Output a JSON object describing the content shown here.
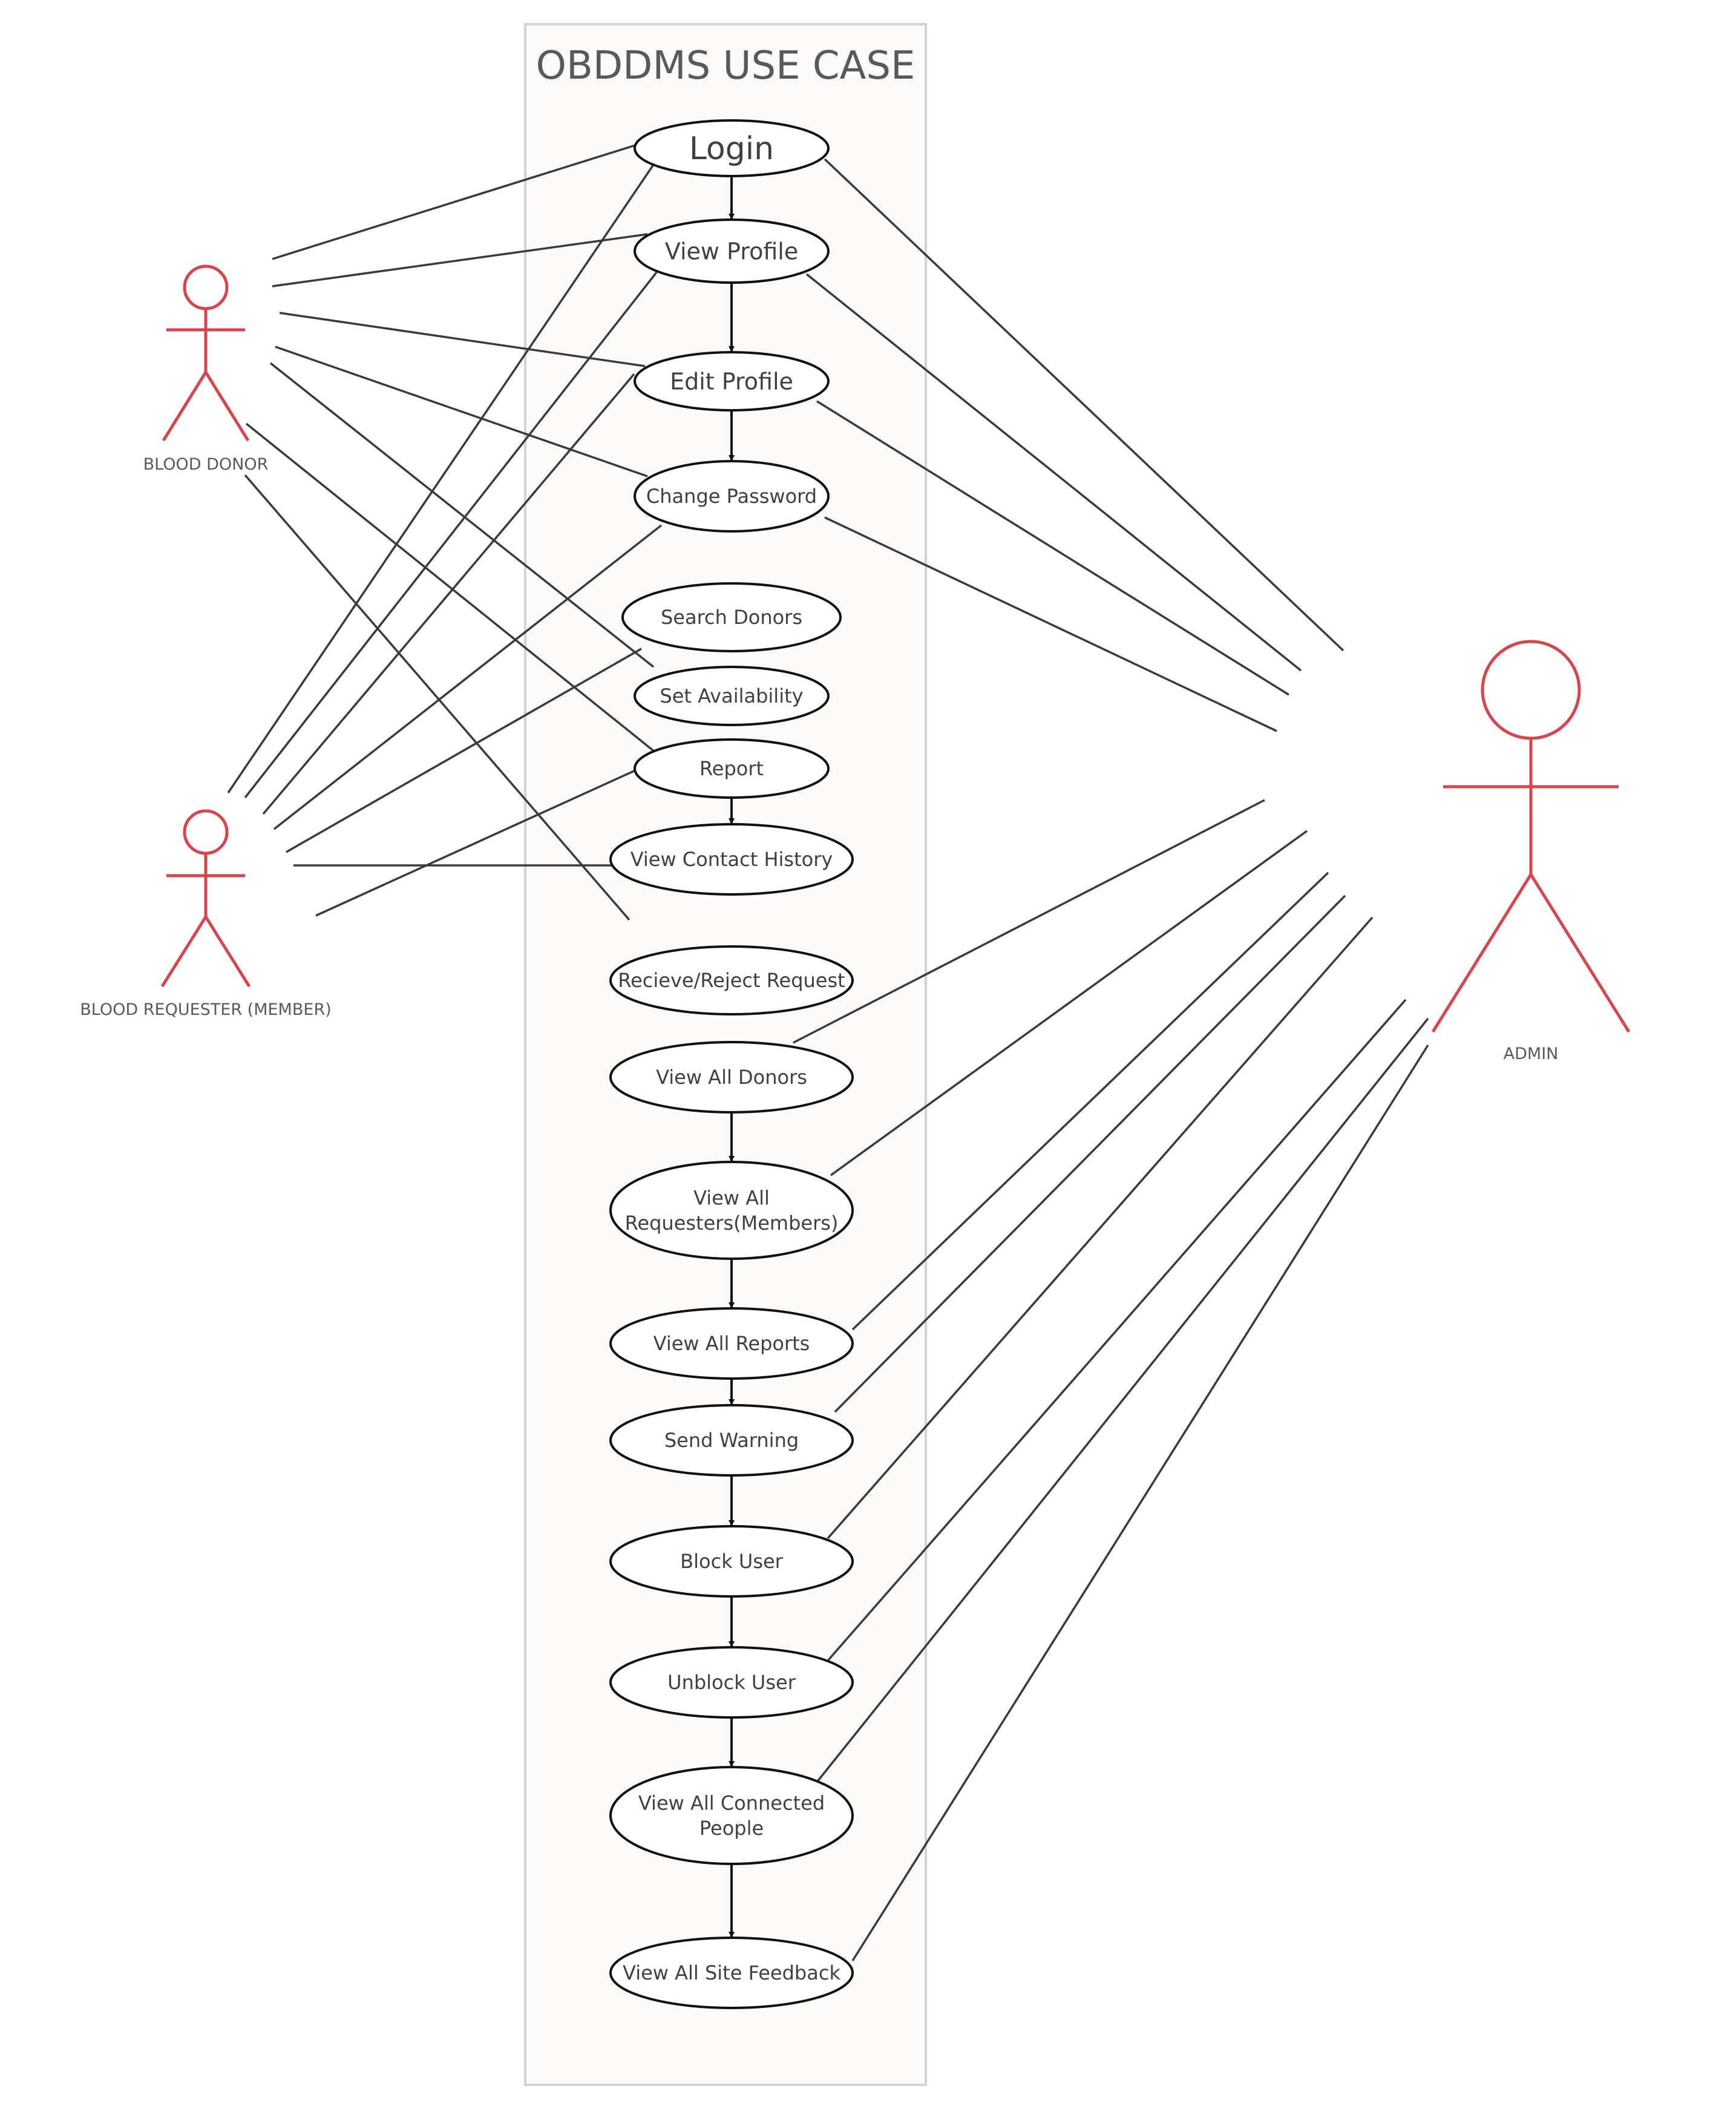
{
  "diagram": {
    "title": "OBDDMS USE CASE",
    "colors": {
      "actor": "#d9434a",
      "line": "#3a3a3a",
      "system_fill": "#fbfaf8",
      "system_border": "#d3d3d3",
      "text": "#404040"
    },
    "actors": [
      {
        "id": "donor",
        "label": "BLOOD DONOR"
      },
      {
        "id": "requester",
        "label": "BLOOD REQUESTER (MEMBER)"
      },
      {
        "id": "admin",
        "label": "ADMIN"
      }
    ],
    "use_cases": [
      {
        "id": "login",
        "lines": [
          "Login"
        ]
      },
      {
        "id": "view-profile",
        "lines": [
          "View Profile"
        ]
      },
      {
        "id": "edit-profile",
        "lines": [
          "Edit Profile"
        ]
      },
      {
        "id": "change-password",
        "lines": [
          "Change Password"
        ]
      },
      {
        "id": "search-donors",
        "lines": [
          "Search Donors"
        ]
      },
      {
        "id": "set-availability",
        "lines": [
          "Set Availability"
        ]
      },
      {
        "id": "report",
        "lines": [
          "Report"
        ]
      },
      {
        "id": "view-contact-history",
        "lines": [
          "View Contact History"
        ]
      },
      {
        "id": "receive-reject-request",
        "lines": [
          "Recieve/Reject Request"
        ]
      },
      {
        "id": "view-all-donors",
        "lines": [
          "View All Donors"
        ]
      },
      {
        "id": "view-all-requesters",
        "lines": [
          "View All",
          "Requesters(Members)"
        ]
      },
      {
        "id": "view-all-reports",
        "lines": [
          "View All Reports"
        ]
      },
      {
        "id": "send-warning",
        "lines": [
          "Send Warning"
        ]
      },
      {
        "id": "block-user",
        "lines": [
          "Block User"
        ]
      },
      {
        "id": "unblock-user",
        "lines": [
          "Unblock User"
        ]
      },
      {
        "id": "view-all-connected-people",
        "lines": [
          "View All Connected",
          "People"
        ]
      },
      {
        "id": "view-all-site-feedback",
        "lines": [
          "View All Site Feedback"
        ]
      }
    ],
    "includes": [
      [
        "login",
        "view-profile"
      ],
      [
        "view-profile",
        "edit-profile"
      ],
      [
        "edit-profile",
        "change-password"
      ],
      [
        "report",
        "view-contact-history"
      ],
      [
        "view-all-donors",
        "view-all-requesters"
      ],
      [
        "view-all-requesters",
        "view-all-reports"
      ],
      [
        "view-all-reports",
        "send-warning"
      ],
      [
        "send-warning",
        "block-user"
      ],
      [
        "block-user",
        "unblock-user"
      ],
      [
        "unblock-user",
        "view-all-connected-people"
      ],
      [
        "view-all-connected-people",
        "view-all-site-feedback"
      ]
    ],
    "associations": [
      [
        "donor",
        "login"
      ],
      [
        "donor",
        "view-profile"
      ],
      [
        "donor",
        "edit-profile"
      ],
      [
        "donor",
        "change-password"
      ],
      [
        "donor",
        "set-availability"
      ],
      [
        "donor",
        "report"
      ],
      [
        "donor",
        "receive-reject-request"
      ],
      [
        "requester",
        "login"
      ],
      [
        "requester",
        "view-profile"
      ],
      [
        "requester",
        "edit-profile"
      ],
      [
        "requester",
        "change-password"
      ],
      [
        "requester",
        "search-donors"
      ],
      [
        "requester",
        "view-contact-history"
      ],
      [
        "requester",
        "report"
      ],
      [
        "admin",
        "login"
      ],
      [
        "admin",
        "view-profile"
      ],
      [
        "admin",
        "edit-profile"
      ],
      [
        "admin",
        "change-password"
      ],
      [
        "admin",
        "view-all-donors"
      ],
      [
        "admin",
        "view-all-requesters"
      ],
      [
        "admin",
        "view-all-reports"
      ],
      [
        "admin",
        "send-warning"
      ],
      [
        "admin",
        "block-user"
      ],
      [
        "admin",
        "unblock-user"
      ],
      [
        "admin",
        "view-all-connected-people"
      ],
      [
        "admin",
        "view-all-site-feedback"
      ]
    ]
  }
}
